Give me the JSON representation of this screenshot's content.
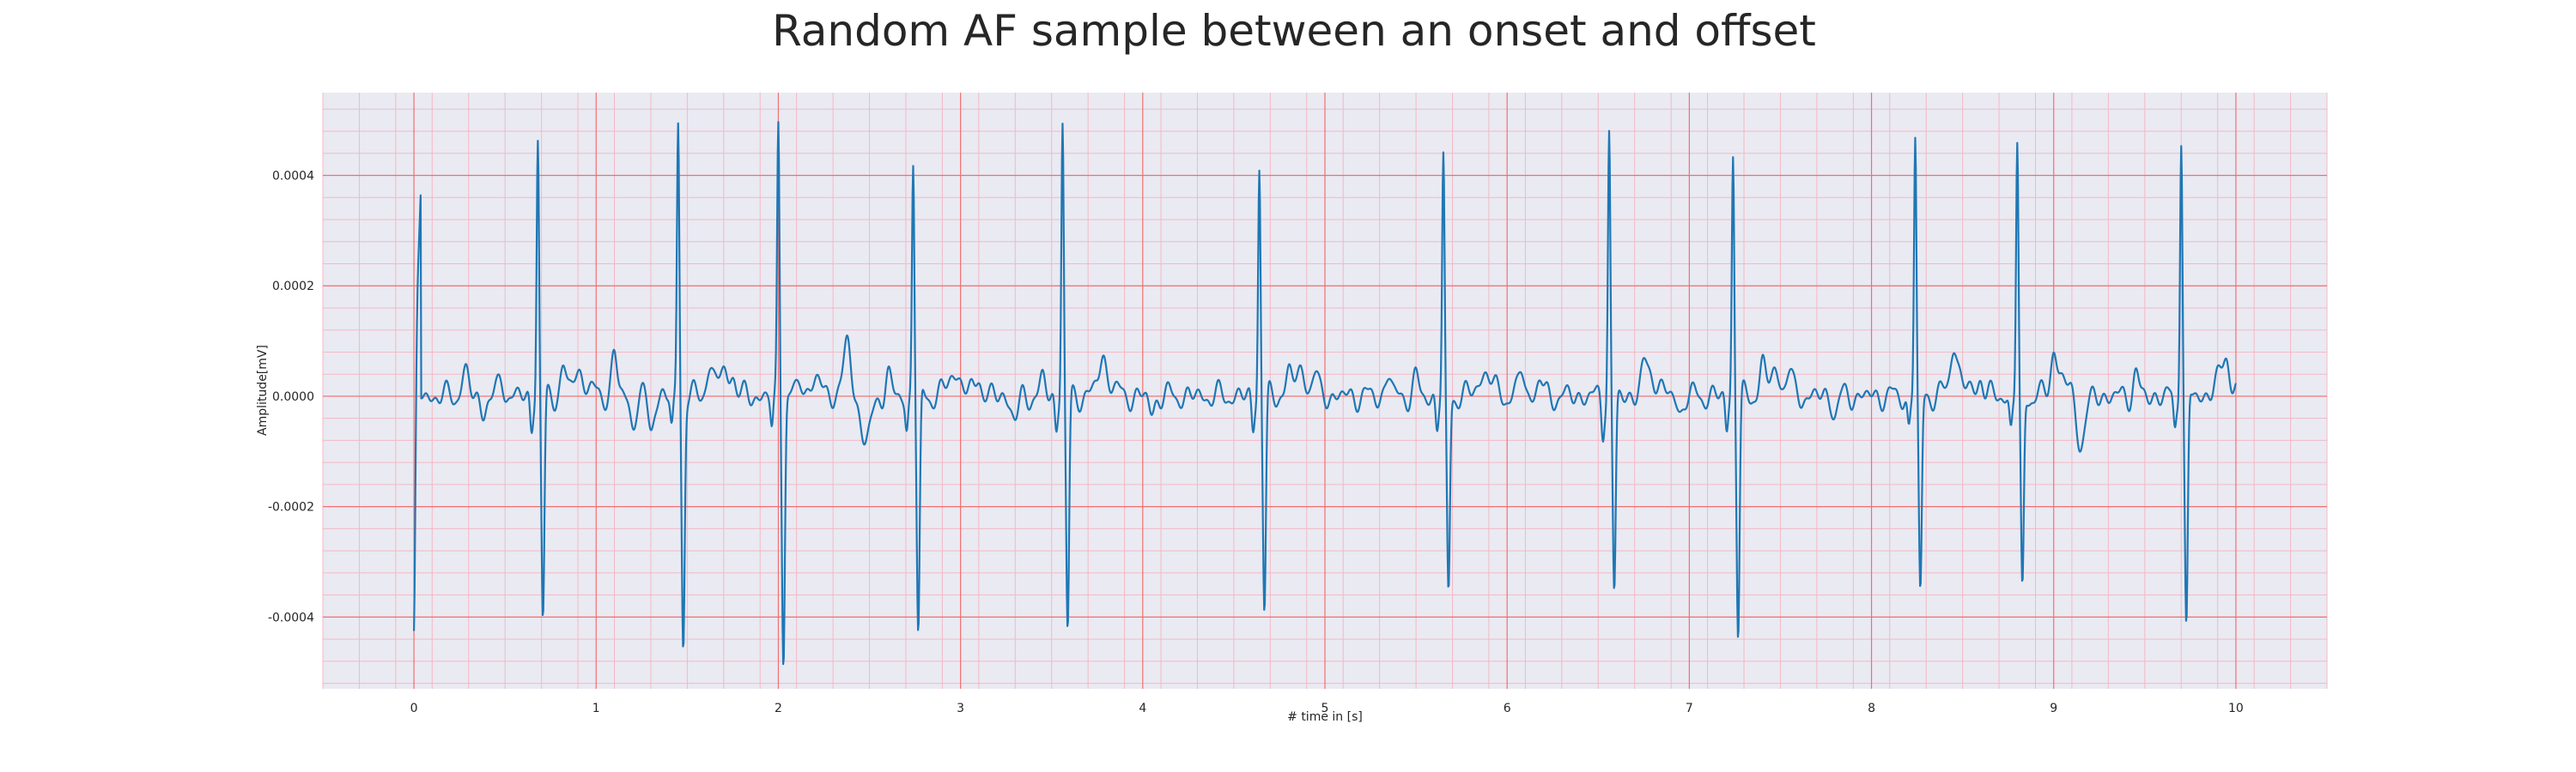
{
  "chart_data": {
    "type": "line",
    "title": "Random AF sample between an onset and offset",
    "xlabel": "# time in [s]",
    "ylabel": "Amplitude[mV]",
    "xlim": [
      -0.5,
      10.5
    ],
    "ylim": [
      -0.00053,
      0.00055
    ],
    "x_ticks": [
      0,
      1,
      2,
      3,
      4,
      5,
      6,
      7,
      8,
      9,
      10
    ],
    "x_tick_labels": [
      "0",
      "1",
      "2",
      "3",
      "4",
      "5",
      "6",
      "7",
      "8",
      "9",
      "10"
    ],
    "y_ticks": [
      -0.0004,
      -0.0002,
      0.0,
      0.0002,
      0.0004
    ],
    "y_tick_labels": [
      "-0.0004",
      "-0.0002",
      "0.0000",
      "0.0002",
      "0.0004"
    ],
    "grid": true,
    "minor_grid": true,
    "sample_rate_hz": 300,
    "colors": {
      "line": "#1f77b4",
      "plot_background": "#eaeaf2",
      "major_grid": "#f07070",
      "minor_grid": "#f3b8c4"
    },
    "series": [
      {
        "beats": [
          {
            "t": 0.0,
            "r": -0.00044,
            "s": -0.00044,
            "r2": 2e-05
          },
          {
            "t": 0.68,
            "r": 0.00047,
            "s": -0.00041
          },
          {
            "t": 1.45,
            "r": 0.0005,
            "s": -0.00045
          },
          {
            "t": 2.0,
            "r": 0.0005,
            "s": -0.00047
          },
          {
            "t": 2.74,
            "r": 0.00043,
            "s": -0.00044
          },
          {
            "t": 3.56,
            "r": 0.0005,
            "s": -0.00043
          },
          {
            "t": 4.64,
            "r": 0.00042,
            "s": -0.00039
          },
          {
            "t": 5.65,
            "r": 0.00043,
            "s": -0.00036
          },
          {
            "t": 6.56,
            "r": 0.00048,
            "s": -0.00036
          },
          {
            "t": 7.24,
            "r": 0.00044,
            "s": -0.00043
          },
          {
            "t": 8.24,
            "r": 0.00047,
            "s": -0.00036
          },
          {
            "t": 8.8,
            "r": 0.00046,
            "s": -0.00036
          },
          {
            "t": 9.7,
            "r": 0.00048,
            "s": -0.00043
          }
        ],
        "baseline_waves": [
          {
            "t": 0.28,
            "a": 4e-05,
            "w": 0.02
          },
          {
            "t": 0.38,
            "a": -3e-05,
            "w": 0.015
          },
          {
            "t": 0.48,
            "a": 3e-05,
            "w": 0.015
          },
          {
            "t": 0.82,
            "a": 5e-05,
            "w": 0.015
          },
          {
            "t": 1.1,
            "a": 8e-05,
            "w": 0.015
          },
          {
            "t": 1.2,
            "a": -5e-05,
            "w": 0.015
          },
          {
            "t": 1.3,
            "a": -6e-05,
            "w": 0.015
          },
          {
            "t": 1.62,
            "a": 4e-05,
            "w": 0.015
          },
          {
            "t": 1.75,
            "a": 4e-05,
            "w": 0.015
          },
          {
            "t": 2.12,
            "a": 3e-05,
            "w": 0.015
          },
          {
            "t": 2.25,
            "a": -3e-05,
            "w": 0.02
          },
          {
            "t": 2.38,
            "a": 0.0001,
            "w": 0.02
          },
          {
            "t": 2.48,
            "a": -8e-05,
            "w": 0.03
          },
          {
            "t": 2.6,
            "a": 4e-05,
            "w": 0.015
          },
          {
            "t": 3.1,
            "a": 4e-05,
            "w": 0.015
          },
          {
            "t": 3.3,
            "a": -4e-05,
            "w": 0.02
          },
          {
            "t": 3.45,
            "a": 3e-05,
            "w": 0.015
          },
          {
            "t": 3.78,
            "a": 3e-05,
            "w": 0.015
          },
          {
            "t": 4.05,
            "a": -3e-05,
            "w": 0.015
          },
          {
            "t": 4.8,
            "a": 4e-05,
            "w": 0.015
          },
          {
            "t": 4.95,
            "a": 3e-05,
            "w": 0.015
          },
          {
            "t": 5.35,
            "a": 4e-05,
            "w": 0.015
          },
          {
            "t": 5.5,
            "a": 3e-05,
            "w": 0.015
          },
          {
            "t": 6.08,
            "a": 5e-05,
            "w": 0.015
          },
          {
            "t": 6.18,
            "a": 3e-05,
            "w": 0.015
          },
          {
            "t": 6.75,
            "a": 3e-05,
            "w": 0.015
          },
          {
            "t": 6.95,
            "a": -3e-05,
            "w": 0.015
          },
          {
            "t": 7.4,
            "a": 5e-05,
            "w": 0.015
          },
          {
            "t": 7.55,
            "a": 4e-05,
            "w": 0.015
          },
          {
            "t": 7.8,
            "a": -3e-05,
            "w": 0.015
          },
          {
            "t": 8.45,
            "a": 6e-05,
            "w": 0.015
          },
          {
            "t": 8.6,
            "a": 4e-05,
            "w": 0.015
          },
          {
            "t": 9.0,
            "a": 5e-05,
            "w": 0.015
          },
          {
            "t": 9.15,
            "a": -8e-05,
            "w": 0.025
          },
          {
            "t": 9.45,
            "a": 4e-05,
            "w": 0.015
          },
          {
            "t": 9.95,
            "a": 4e-05,
            "w": 0.015
          }
        ]
      }
    ]
  }
}
